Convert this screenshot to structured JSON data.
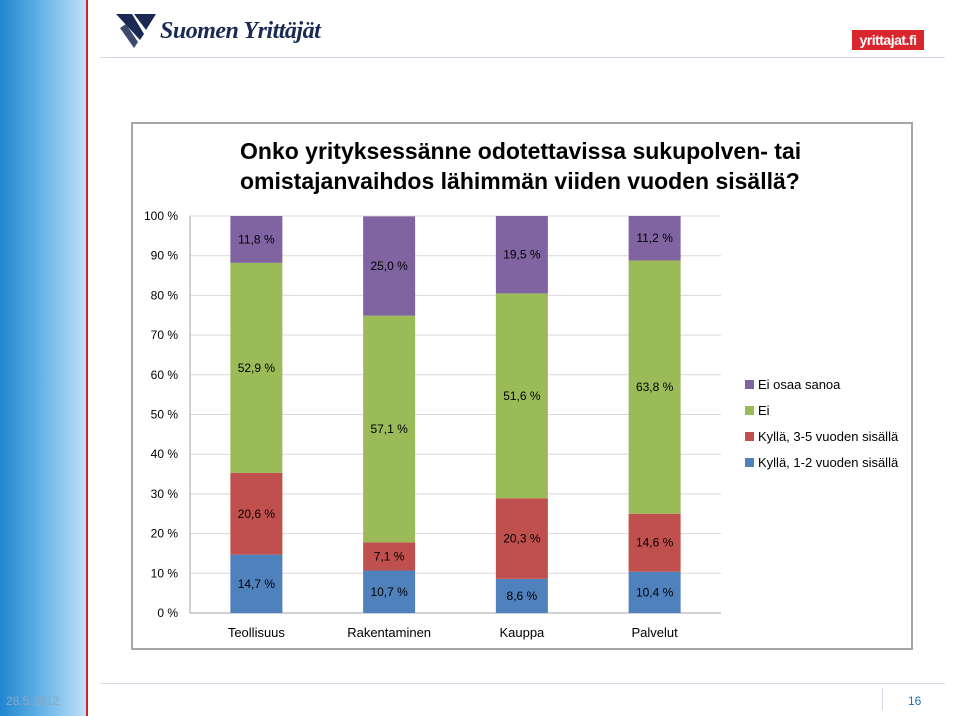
{
  "header": {
    "logo_text": "Suomen Yrittäjät",
    "badge_text": "yrittajat.fi"
  },
  "footer": {
    "date": "28.5.2012",
    "page_number": "16"
  },
  "chart_data": {
    "type": "bar",
    "stacked": true,
    "title_lines": [
      "Onko yrityksessänne odotettavissa sukupolven- tai",
      "omistajanvaihdos lähimmän viiden vuoden sisällä?"
    ],
    "categories": [
      "Teollisuus",
      "Rakentaminen",
      "Kauppa",
      "Palvelut"
    ],
    "series": [
      {
        "name": "Kyllä, 1-2 vuoden sisällä",
        "values": [
          14.7,
          10.7,
          8.6,
          10.4
        ],
        "labels": [
          "14,7 %",
          "10,7 %",
          "8,6 %",
          "10,4 %"
        ],
        "color": "#4f81bd"
      },
      {
        "name": "Kyllä, 3-5 vuoden sisällä",
        "values": [
          20.6,
          7.1,
          20.3,
          14.6
        ],
        "labels": [
          "20,6 %",
          "7,1 %",
          "20,3 %",
          "14,6 %"
        ],
        "color": "#c0504d"
      },
      {
        "name": "Ei",
        "values": [
          52.9,
          57.1,
          51.6,
          63.8
        ],
        "labels": [
          "52,9 %",
          "57,1 %",
          "51,6 %",
          "63,8 %"
        ],
        "color": "#9bbb59"
      },
      {
        "name": "Ei osaa sanoa",
        "values": [
          11.8,
          25.0,
          19.5,
          11.2
        ],
        "labels": [
          "11,8 %",
          "25,0 %",
          "19,5 %",
          "11,2 %"
        ],
        "color": "#8064a2"
      }
    ],
    "legend_order": [
      "Ei osaa sanoa",
      "Ei",
      "Kyllä, 3-5 vuoden sisällä",
      "Kyllä, 1-2 vuoden sisällä"
    ],
    "y_ticks": [
      "0 %",
      "10 %",
      "20 %",
      "30 %",
      "40 %",
      "50 %",
      "60 %",
      "70 %",
      "80 %",
      "90 %",
      "100 %"
    ],
    "ylim": [
      0,
      100
    ],
    "grid": true,
    "legend_position": "right"
  }
}
